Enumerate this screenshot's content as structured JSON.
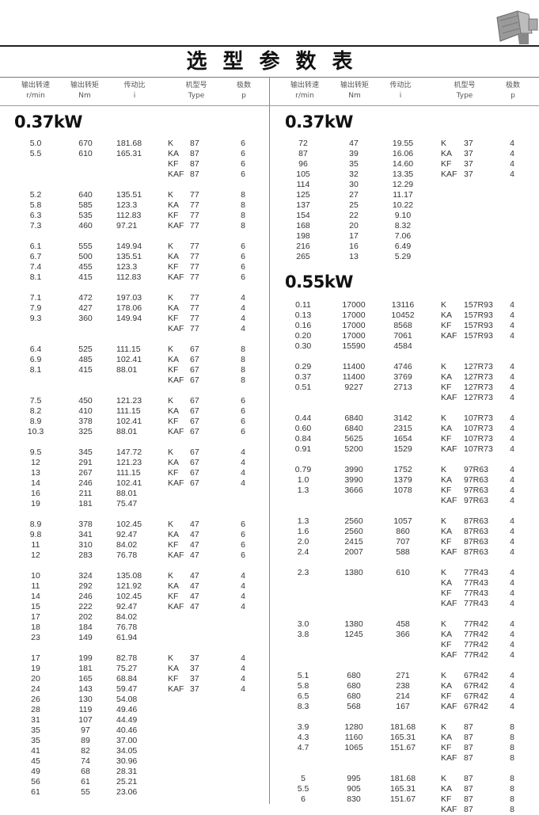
{
  "page_title": "选型参数表",
  "product_image": "gear-motor-photo",
  "headers": {
    "speed": {
      "cn": "输出转速",
      "unit": "r/min"
    },
    "torque": {
      "cn": "输出转矩",
      "unit": "Nm"
    },
    "ratio": {
      "cn": "传动比",
      "unit": "i"
    },
    "type": {
      "cn": "机型号",
      "unit": "Type"
    },
    "poles": {
      "cn": "极数",
      "unit": "p"
    }
  },
  "left": {
    "power": "0.37kW",
    "groups": [
      [
        [
          "5.0",
          "670",
          "181.68",
          "K",
          "87",
          "6"
        ],
        [
          "5.5",
          "610",
          "165.31",
          "KA",
          "87",
          "6"
        ],
        [
          "",
          "",
          "",
          "KF",
          "87",
          "6"
        ],
        [
          "",
          "",
          "",
          "KAF",
          "87",
          "6"
        ]
      ],
      [
        [
          "5.2",
          "640",
          "135.51",
          "K",
          "77",
          "8"
        ],
        [
          "5.8",
          "585",
          "123.3",
          "KA",
          "77",
          "8"
        ],
        [
          "6.3",
          "535",
          "112.83",
          "KF",
          "77",
          "8"
        ],
        [
          "7.3",
          "460",
          "97.21",
          "KAF",
          "77",
          "8"
        ]
      ],
      [
        [
          "6.1",
          "555",
          "149.94",
          "K",
          "77",
          "6"
        ],
        [
          "6.7",
          "500",
          "135.51",
          "KA",
          "77",
          "6"
        ],
        [
          "7.4",
          "455",
          "123.3",
          "KF",
          "77",
          "6"
        ],
        [
          "8.1",
          "415",
          "112.83",
          "KAF",
          "77",
          "6"
        ]
      ],
      [
        [
          "7.1",
          "472",
          "197.03",
          "K",
          "77",
          "4"
        ],
        [
          "7.9",
          "427",
          "178.06",
          "KA",
          "77",
          "4"
        ],
        [
          "9.3",
          "360",
          "149.94",
          "KF",
          "77",
          "4"
        ],
        [
          "",
          "",
          "",
          "KAF",
          "77",
          "4"
        ]
      ],
      [
        [
          "6.4",
          "525",
          "111.15",
          "K",
          "67",
          "8"
        ],
        [
          "6.9",
          "485",
          "102.41",
          "KA",
          "67",
          "8"
        ],
        [
          "8.1",
          "415",
          "88.01",
          "KF",
          "67",
          "8"
        ],
        [
          "",
          "",
          "",
          "KAF",
          "67",
          "8"
        ]
      ],
      [
        [
          "7.5",
          "450",
          "121.23",
          "K",
          "67",
          "6"
        ],
        [
          "8.2",
          "410",
          "111.15",
          "KA",
          "67",
          "6"
        ],
        [
          "8.9",
          "378",
          "102.41",
          "KF",
          "67",
          "6"
        ],
        [
          "10.3",
          "325",
          "88.01",
          "KAF",
          "67",
          "6"
        ]
      ],
      [
        [
          "9.5",
          "345",
          "147.72",
          "K",
          "67",
          "4"
        ],
        [
          "12",
          "291",
          "121.23",
          "KA",
          "67",
          "4"
        ],
        [
          "13",
          "267",
          "111.15",
          "KF",
          "67",
          "4"
        ],
        [
          "14",
          "246",
          "102.41",
          "KAF",
          "67",
          "4"
        ],
        [
          "16",
          "211",
          "88.01",
          "",
          "",
          ""
        ],
        [
          "19",
          "181",
          "75.47",
          "",
          "",
          ""
        ]
      ],
      [
        [
          "8.9",
          "378",
          "102.45",
          "K",
          "47",
          "6"
        ],
        [
          "9.8",
          "341",
          "92.47",
          "KA",
          "47",
          "6"
        ],
        [
          "11",
          "310",
          "84.02",
          "KF",
          "47",
          "6"
        ],
        [
          "12",
          "283",
          "76.78",
          "KAF",
          "47",
          "6"
        ]
      ],
      [
        [
          "10",
          "324",
          "135.08",
          "K",
          "47",
          "4"
        ],
        [
          "11",
          "292",
          "121.92",
          "KA",
          "47",
          "4"
        ],
        [
          "14",
          "246",
          "102.45",
          "KF",
          "47",
          "4"
        ],
        [
          "15",
          "222",
          "92.47",
          "KAF",
          "47",
          "4"
        ],
        [
          "17",
          "202",
          "84.02",
          "",
          "",
          ""
        ],
        [
          "18",
          "184",
          "76.78",
          "",
          "",
          ""
        ],
        [
          "23",
          "149",
          "61.94",
          "",
          "",
          ""
        ]
      ],
      [
        [
          "17",
          "199",
          "82.78",
          "K",
          "37",
          "4"
        ],
        [
          "19",
          "181",
          "75.27",
          "KA",
          "37",
          "4"
        ],
        [
          "20",
          "165",
          "68.84",
          "KF",
          "37",
          "4"
        ],
        [
          "24",
          "143",
          "59.47",
          "KAF",
          "37",
          "4"
        ],
        [
          "26",
          "130",
          "54.08",
          "",
          "",
          ""
        ],
        [
          "28",
          "119",
          "49.46",
          "",
          "",
          ""
        ],
        [
          "31",
          "107",
          "44.49",
          "",
          "",
          ""
        ],
        [
          "35",
          "97",
          "40.46",
          "",
          "",
          ""
        ],
        [
          "35",
          "89",
          "37.00",
          "",
          "",
          ""
        ],
        [
          "41",
          "82",
          "34.05",
          "",
          "",
          ""
        ],
        [
          "45",
          "74",
          "30.96",
          "",
          "",
          ""
        ],
        [
          "49",
          "68",
          "28.31",
          "",
          "",
          ""
        ],
        [
          "56",
          "61",
          "25.21",
          "",
          "",
          ""
        ],
        [
          "61",
          "55",
          "23.06",
          "",
          "",
          ""
        ]
      ]
    ]
  },
  "right_a": {
    "power": "0.37kW",
    "groups": [
      [
        [
          "72",
          "47",
          "19.55",
          "K",
          "37",
          "4"
        ],
        [
          "87",
          "39",
          "16.06",
          "KA",
          "37",
          "4"
        ],
        [
          "96",
          "35",
          "14.60",
          "KF",
          "37",
          "4"
        ],
        [
          "105",
          "32",
          "13.35",
          "KAF",
          "37",
          "4"
        ],
        [
          "114",
          "30",
          "12.29",
          "",
          "",
          ""
        ],
        [
          "125",
          "27",
          "11.17",
          "",
          "",
          ""
        ],
        [
          "137",
          "25",
          "10.22",
          "",
          "",
          ""
        ],
        [
          "154",
          "22",
          "9.10",
          "",
          "",
          ""
        ],
        [
          "168",
          "20",
          "8.32",
          "",
          "",
          ""
        ],
        [
          "198",
          "17",
          "7.06",
          "",
          "",
          ""
        ],
        [
          "216",
          "16",
          "6.49",
          "",
          "",
          ""
        ],
        [
          "265",
          "13",
          "5.29",
          "",
          "",
          ""
        ]
      ]
    ]
  },
  "right_b": {
    "power": "0.55kW",
    "groups": [
      [
        [
          "0.11",
          "17000",
          "13116",
          "K",
          "157R93",
          "4"
        ],
        [
          "0.13",
          "17000",
          "10452",
          "KA",
          "157R93",
          "4"
        ],
        [
          "0.16",
          "17000",
          "8568",
          "KF",
          "157R93",
          "4"
        ],
        [
          "0.20",
          "17000",
          "7061",
          "KAF",
          "157R93",
          "4"
        ],
        [
          "0.30",
          "15590",
          "4584",
          "",
          "",
          ""
        ]
      ],
      [
        [
          "0.29",
          "11400",
          "4746",
          "K",
          "127R73",
          "4"
        ],
        [
          "0.37",
          "11400",
          "3769",
          "KA",
          "127R73",
          "4"
        ],
        [
          "0.51",
          "9227",
          "2713",
          "KF",
          "127R73",
          "4"
        ],
        [
          "",
          "",
          "",
          "KAF",
          "127R73",
          "4"
        ]
      ],
      [
        [
          "0.44",
          "6840",
          "3142",
          "K",
          "107R73",
          "4"
        ],
        [
          "0.60",
          "6840",
          "2315",
          "KA",
          "107R73",
          "4"
        ],
        [
          "0.84",
          "5625",
          "1654",
          "KF",
          "107R73",
          "4"
        ],
        [
          "0.91",
          "5200",
          "1529",
          "KAF",
          "107R73",
          "4"
        ]
      ],
      [
        [
          "0.79",
          "3990",
          "1752",
          "K",
          "97R63",
          "4"
        ],
        [
          "1.0",
          "3990",
          "1379",
          "KA",
          "97R63",
          "4"
        ],
        [
          "1.3",
          "3666",
          "1078",
          "KF",
          "97R63",
          "4"
        ],
        [
          "",
          "",
          "",
          "KAF",
          "97R63",
          "4"
        ]
      ],
      [
        [
          "1.3",
          "2560",
          "1057",
          "K",
          "87R63",
          "4"
        ],
        [
          "1.6",
          "2560",
          "860",
          "KA",
          "87R63",
          "4"
        ],
        [
          "2.0",
          "2415",
          "707",
          "KF",
          "87R63",
          "4"
        ],
        [
          "2.4",
          "2007",
          "588",
          "KAF",
          "87R63",
          "4"
        ]
      ],
      [
        [
          "2.3",
          "1380",
          "610",
          "K",
          "77R43",
          "4"
        ],
        [
          "",
          "",
          "",
          "KA",
          "77R43",
          "4"
        ],
        [
          "",
          "",
          "",
          "KF",
          "77R43",
          "4"
        ],
        [
          "",
          "",
          "",
          "KAF",
          "77R43",
          "4"
        ]
      ],
      [
        [
          "3.0",
          "1380",
          "458",
          "K",
          "77R42",
          "4"
        ],
        [
          "3.8",
          "1245",
          "366",
          "KA",
          "77R42",
          "4"
        ],
        [
          "",
          "",
          "",
          "KF",
          "77R42",
          "4"
        ],
        [
          "",
          "",
          "",
          "KAF",
          "77R42",
          "4"
        ]
      ],
      [
        [
          "5.1",
          "680",
          "271",
          "K",
          "67R42",
          "4"
        ],
        [
          "5.8",
          "680",
          "238",
          "KA",
          "67R42",
          "4"
        ],
        [
          "6.5",
          "680",
          "214",
          "KF",
          "67R42",
          "4"
        ],
        [
          "8.3",
          "568",
          "167",
          "KAF",
          "67R42",
          "4"
        ]
      ],
      [
        [
          "3.9",
          "1280",
          "181.68",
          "K",
          "87",
          "8"
        ],
        [
          "4.3",
          "1160",
          "165.31",
          "KA",
          "87",
          "8"
        ],
        [
          "4.7",
          "1065",
          "151.67",
          "KF",
          "87",
          "8"
        ],
        [
          "",
          "",
          "",
          "KAF",
          "87",
          "8"
        ]
      ],
      [
        [
          "5",
          "995",
          "181.68",
          "K",
          "87",
          "8"
        ],
        [
          "5.5",
          "905",
          "165.31",
          "KA",
          "87",
          "8"
        ],
        [
          "6",
          "830",
          "151.67",
          "KF",
          "87",
          "8"
        ],
        [
          "",
          "",
          "",
          "KAF",
          "87",
          "8"
        ]
      ]
    ]
  }
}
